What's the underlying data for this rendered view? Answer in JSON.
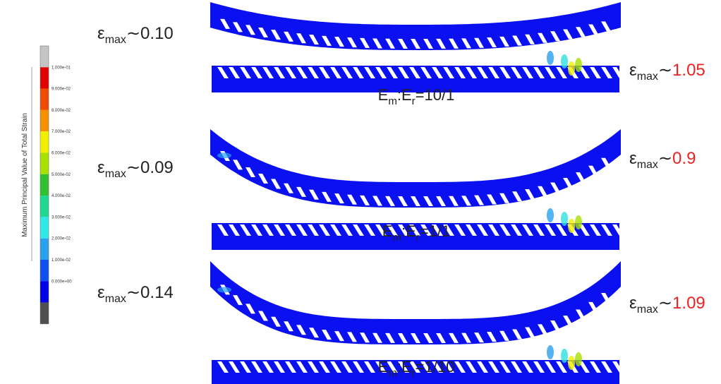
{
  "colorbar": {
    "title": "Maximum Principal Value of Total Strain",
    "ticks": [
      "1.000e-01",
      "9.000e-02",
      "8.000e-02",
      "7.000e-02",
      "6.000e-02",
      "5.000e-02",
      "4.000e-02",
      "3.000e-02",
      "2.000e-02",
      "1.000e-02",
      "0.000e+00"
    ]
  },
  "panels": [
    {
      "left": {
        "symbol": "ε",
        "subscript": "max",
        "relation": "∼",
        "value": "0.10"
      },
      "right": {
        "symbol": "ε",
        "subscript": "max",
        "relation": "∼",
        "value": "1.05"
      },
      "caption": {
        "base1": "E",
        "sub1": "m",
        "mid": ":E",
        "sub2": "r",
        "ratio": "=10/1"
      }
    },
    {
      "left": {
        "symbol": "ε",
        "subscript": "max",
        "relation": "∼",
        "value": "0.09"
      },
      "right": {
        "symbol": "ε",
        "subscript": "max",
        "relation": "∼",
        "value": "0.9"
      },
      "caption": {
        "base1": "E",
        "sub1": "m",
        "mid": ":E",
        "sub2": "r",
        "ratio": "=1/1"
      }
    },
    {
      "left": {
        "symbol": "ε",
        "subscript": "max",
        "relation": "∼",
        "value": "0.14"
      },
      "right": {
        "symbol": "ε",
        "subscript": "max",
        "relation": "∼",
        "value": "1.09"
      },
      "caption": {
        "base1": "E",
        "sub1": "m",
        "mid": ":E",
        "sub2": "r",
        "ratio": "=1/10"
      }
    }
  ]
}
